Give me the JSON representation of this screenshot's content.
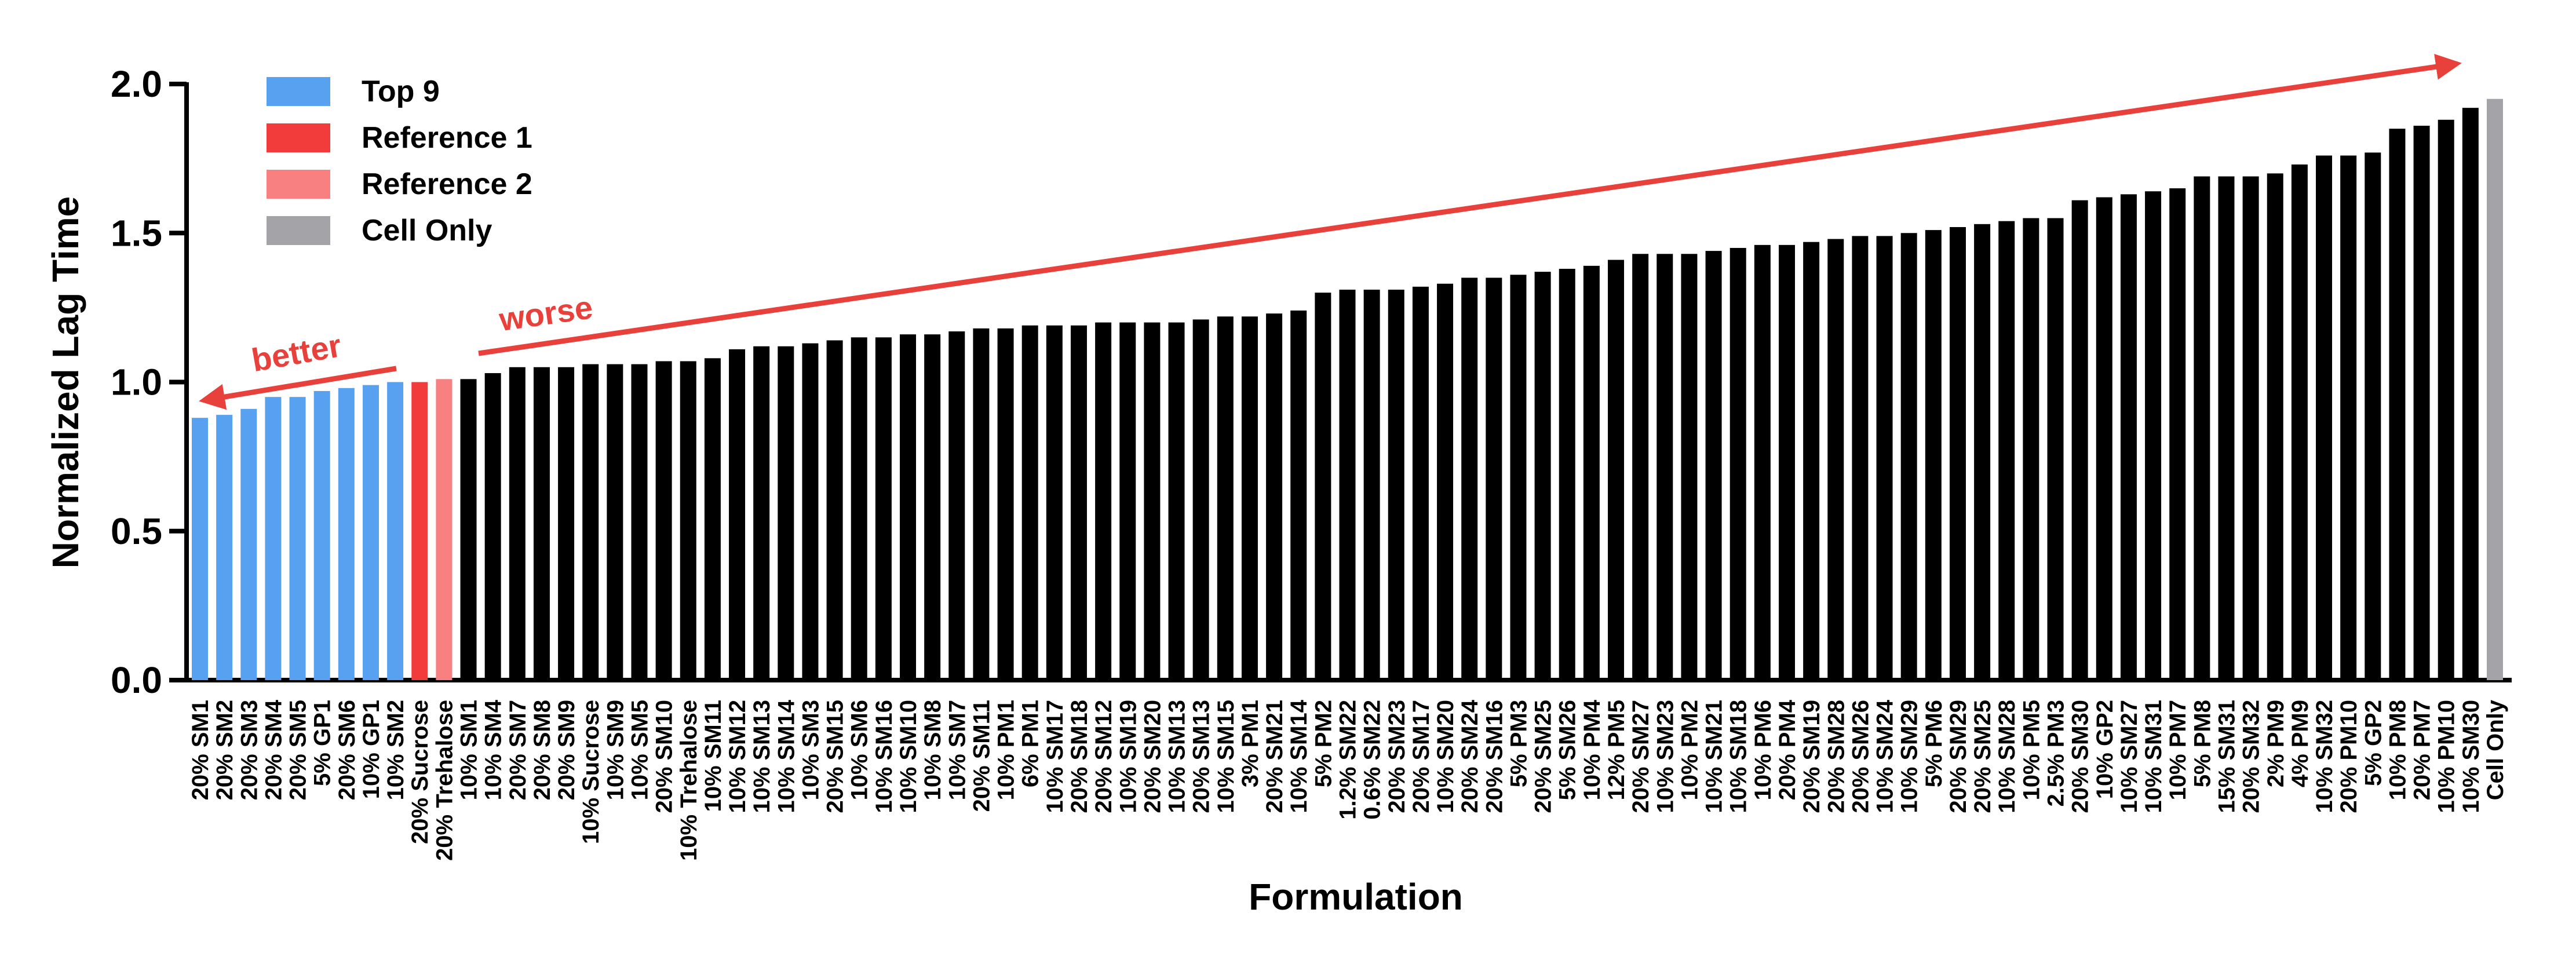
{
  "chart_data": {
    "type": "bar",
    "y_label": "Normalized Lag Time",
    "x_label": "Formulation",
    "categories": [
      "20% SM1",
      "20% SM2",
      "20% SM3",
      "20% SM4",
      "20% SM5",
      "5% GP1",
      "20% SM6",
      "10% GP1",
      "10% SM2",
      "20% Sucrose",
      "20% Trehalose",
      "10% SM1",
      "10% SM4",
      "20% SM7",
      "20% SM8",
      "20% SM9",
      "10% Sucrose",
      "10% SM9",
      "10% SM5",
      "20% SM10",
      "10% Trehalose",
      "10% SM11",
      "10% SM12",
      "10% SM13",
      "10% SM14",
      "10% SM3",
      "20% SM15",
      "10% SM6",
      "10% SM16",
      "10% SM10",
      "10% SM8",
      "10% SM7",
      "20% SM11",
      "10% PM1",
      "6% PM1",
      "10% SM17",
      "20% SM18",
      "20% SM12",
      "10% SM19",
      "20% SM20",
      "10% SM13",
      "20% SM13",
      "10% SM15",
      "3% PM1",
      "20% SM21",
      "10% SM14",
      "5% PM2",
      "1.2% SM22",
      "0.6% SM22",
      "20% SM23",
      "20% SM17",
      "10% SM20",
      "20% SM24",
      "20% SM16",
      "5% PM3",
      "20% SM25",
      "5% SM26",
      "10% PM4",
      "12% PM5",
      "20% SM27",
      "10% SM23",
      "10% PM2",
      "10% SM21",
      "10% SM18",
      "10% PM6",
      "20% PM4",
      "20% SM19",
      "20% SM28",
      "20% SM26",
      "10% SM24",
      "10% SM29",
      "5% PM6",
      "20% SM29",
      "20% SM25",
      "10% SM28",
      "10% PM5",
      "2.5% PM3",
      "20% SM30",
      "10% GP2",
      "10% SM27",
      "10% SM31",
      "10% PM7",
      "5% PM8",
      "15% SM31",
      "20% SM32",
      "2% PM9",
      "4% PM9",
      "10% SM32",
      "20% PM10",
      "5% GP2",
      "10% PM8",
      "20% PM7",
      "10% PM10",
      "10% SM30",
      "Cell Only"
    ],
    "values": [
      0.88,
      0.89,
      0.91,
      0.95,
      0.95,
      0.97,
      0.98,
      0.99,
      1.0,
      1.0,
      1.01,
      1.01,
      1.03,
      1.05,
      1.05,
      1.05,
      1.06,
      1.06,
      1.06,
      1.07,
      1.07,
      1.08,
      1.11,
      1.12,
      1.12,
      1.13,
      1.14,
      1.15,
      1.15,
      1.16,
      1.16,
      1.17,
      1.18,
      1.18,
      1.19,
      1.19,
      1.19,
      1.2,
      1.2,
      1.2,
      1.2,
      1.21,
      1.22,
      1.22,
      1.23,
      1.24,
      1.3,
      1.31,
      1.31,
      1.31,
      1.32,
      1.33,
      1.35,
      1.35,
      1.36,
      1.37,
      1.38,
      1.39,
      1.41,
      1.43,
      1.43,
      1.43,
      1.44,
      1.45,
      1.46,
      1.46,
      1.47,
      1.48,
      1.49,
      1.49,
      1.5,
      1.51,
      1.52,
      1.53,
      1.54,
      1.55,
      1.55,
      1.61,
      1.62,
      1.63,
      1.64,
      1.65,
      1.69,
      1.69,
      1.69,
      1.7,
      1.73,
      1.76,
      1.76,
      1.77,
      1.85,
      1.86,
      1.88,
      1.92,
      1.95
    ],
    "colors": [
      "#58a0f0",
      "#58a0f0",
      "#58a0f0",
      "#58a0f0",
      "#58a0f0",
      "#58a0f0",
      "#58a0f0",
      "#58a0f0",
      "#58a0f0",
      "#f23c3c",
      "#f98080",
      "#000000",
      "#000000",
      "#000000",
      "#000000",
      "#000000",
      "#000000",
      "#000000",
      "#000000",
      "#000000",
      "#000000",
      "#000000",
      "#000000",
      "#000000",
      "#000000",
      "#000000",
      "#000000",
      "#000000",
      "#000000",
      "#000000",
      "#000000",
      "#000000",
      "#000000",
      "#000000",
      "#000000",
      "#000000",
      "#000000",
      "#000000",
      "#000000",
      "#000000",
      "#000000",
      "#000000",
      "#000000",
      "#000000",
      "#000000",
      "#000000",
      "#000000",
      "#000000",
      "#000000",
      "#000000",
      "#000000",
      "#000000",
      "#000000",
      "#000000",
      "#000000",
      "#000000",
      "#000000",
      "#000000",
      "#000000",
      "#000000",
      "#000000",
      "#000000",
      "#000000",
      "#000000",
      "#000000",
      "#000000",
      "#000000",
      "#000000",
      "#000000",
      "#000000",
      "#000000",
      "#000000",
      "#000000",
      "#000000",
      "#000000",
      "#000000",
      "#000000",
      "#000000",
      "#000000",
      "#000000",
      "#000000",
      "#000000",
      "#000000",
      "#000000",
      "#000000",
      "#000000",
      "#000000",
      "#000000",
      "#000000",
      "#000000",
      "#000000",
      "#000000",
      "#000000",
      "#000000",
      "#a3a3a8"
    ],
    "legend": [
      {
        "name": "Top 9",
        "color": "#58a0f0"
      },
      {
        "name": "Reference 1",
        "color": "#f23c3c"
      },
      {
        "name": "Reference 2",
        "color": "#f98080"
      },
      {
        "name": "Cell Only",
        "color": "#a3a3a8"
      }
    ],
    "annotations": [
      "better",
      "worse"
    ],
    "ylim": [
      0,
      2.0
    ],
    "yticks": [
      {
        "value": 0,
        "label": "0.0"
      },
      0.5,
      {
        "value": 1,
        "label": "1.0"
      },
      1.5,
      {
        "value": 2,
        "label": "2.0"
      }
    ]
  }
}
